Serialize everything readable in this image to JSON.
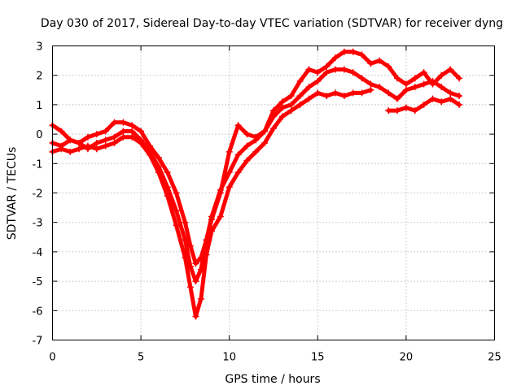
{
  "chart_data": {
    "type": "scatter",
    "title": "Day 030 of 2017, Sidereal Day-to-day VTEC variation (SDTVAR) for receiver dyng",
    "xlabel": "GPS time / hours",
    "ylabel": "SDTVAR / TECUs",
    "xlim": [
      0,
      25
    ],
    "ylim": [
      -7,
      3
    ],
    "xticks": [
      "0",
      "5",
      "10",
      "15",
      "20",
      "25"
    ],
    "yticks": [
      "-7",
      "-6",
      "-5",
      "-4",
      "-3",
      "-2",
      "-1",
      "0",
      "1",
      "2",
      "3"
    ],
    "grid": true,
    "marker": "plus",
    "color": "#ff0000",
    "series": [
      {
        "x": [
          0,
          0.5,
          1,
          1.5,
          2,
          2.5,
          3,
          3.5,
          4,
          4.5,
          5,
          5.5,
          6,
          6.5,
          7,
          7.5,
          7.8,
          8.1,
          8.4,
          8.7,
          9,
          9.5,
          10,
          10.5,
          11,
          11.5,
          12,
          12.5,
          13,
          13.5,
          14,
          14.5,
          15,
          15.5,
          16,
          16.5,
          17,
          17.5,
          18,
          18.5,
          19,
          19.5,
          20,
          20.5,
          21,
          21.5,
          22,
          22.5,
          23
        ],
        "y": [
          0.3,
          0.1,
          -0.2,
          -0.3,
          -0.1,
          0.0,
          0.1,
          0.4,
          0.4,
          0.3,
          0.1,
          -0.4,
          -0.8,
          -1.3,
          -2.0,
          -3.0,
          -3.8,
          -4.4,
          -4.2,
          -3.6,
          -2.9,
          -2.0,
          -0.6,
          0.3,
          0.0,
          -0.1,
          0.1,
          0.8,
          1.1,
          1.3,
          1.8,
          2.2,
          2.1,
          2.3,
          2.6,
          2.8,
          2.8,
          2.7,
          2.4,
          2.5,
          2.3,
          1.9,
          1.7,
          1.9,
          2.1,
          1.7,
          2.0,
          2.2,
          1.9
        ]
      },
      {
        "x": [
          0,
          0.5,
          1,
          1.5,
          2,
          2.5,
          3,
          3.5,
          4,
          4.5,
          5,
          5.5,
          6,
          6.5,
          7,
          7.5,
          7.8,
          8.1,
          8.4,
          8.7,
          9,
          9.5,
          10,
          10.5,
          11,
          11.5,
          12,
          12.5,
          13,
          13.5,
          14,
          14.5,
          15,
          15.5,
          16,
          16.5,
          17,
          17.5,
          18,
          18.5,
          19,
          19.5,
          20,
          20.5,
          21,
          21.5,
          22,
          22.5,
          23
        ],
        "y": [
          -0.3,
          -0.4,
          -0.2,
          -0.3,
          -0.5,
          -0.3,
          -0.2,
          -0.1,
          0.1,
          0.1,
          -0.2,
          -0.6,
          -1.1,
          -1.8,
          -2.6,
          -3.6,
          -4.5,
          -5.0,
          -4.6,
          -3.6,
          -2.8,
          -1.9,
          -1.3,
          -0.7,
          -0.4,
          -0.2,
          0.1,
          0.6,
          0.9,
          1.0,
          1.3,
          1.6,
          1.8,
          2.1,
          2.2,
          2.2,
          2.1,
          1.9,
          1.7,
          1.6,
          1.4,
          1.2,
          1.5,
          1.6,
          1.7,
          1.8,
          1.6,
          1.4,
          1.3
        ]
      },
      {
        "x": [
          0,
          0.5,
          1,
          1.5,
          2,
          2.5,
          3,
          3.5,
          4,
          4.5,
          5,
          5.5,
          6,
          6.5,
          7,
          7.5,
          7.8,
          8.1,
          8.4,
          8.7,
          9,
          9.5,
          10,
          10.5,
          11,
          11.5,
          12,
          12.5,
          13,
          13.5,
          14,
          14.5,
          15,
          15.5,
          16,
          16.5,
          17,
          17.5,
          18,
          18.5,
          19,
          19.5,
          20,
          20.5,
          21,
          21.5,
          22,
          22.5,
          23
        ],
        "y": [
          -0.6,
          -0.5,
          -0.6,
          -0.5,
          -0.4,
          -0.5,
          -0.4,
          -0.3,
          -0.1,
          -0.1,
          -0.3,
          -0.7,
          -1.3,
          -2.1,
          -3.1,
          -4.2,
          -5.2,
          -6.2,
          -5.6,
          -4.1,
          -3.3,
          -2.8,
          -1.8,
          -1.3,
          -0.9,
          -0.6,
          -0.3,
          0.2,
          0.6,
          0.8,
          1.0,
          1.2,
          1.4,
          1.3,
          1.4,
          1.3,
          1.4,
          1.4,
          1.5,
          null,
          0.8,
          0.8,
          0.9,
          0.8,
          1.0,
          1.2,
          1.1,
          1.2,
          1.0
        ]
      }
    ]
  }
}
